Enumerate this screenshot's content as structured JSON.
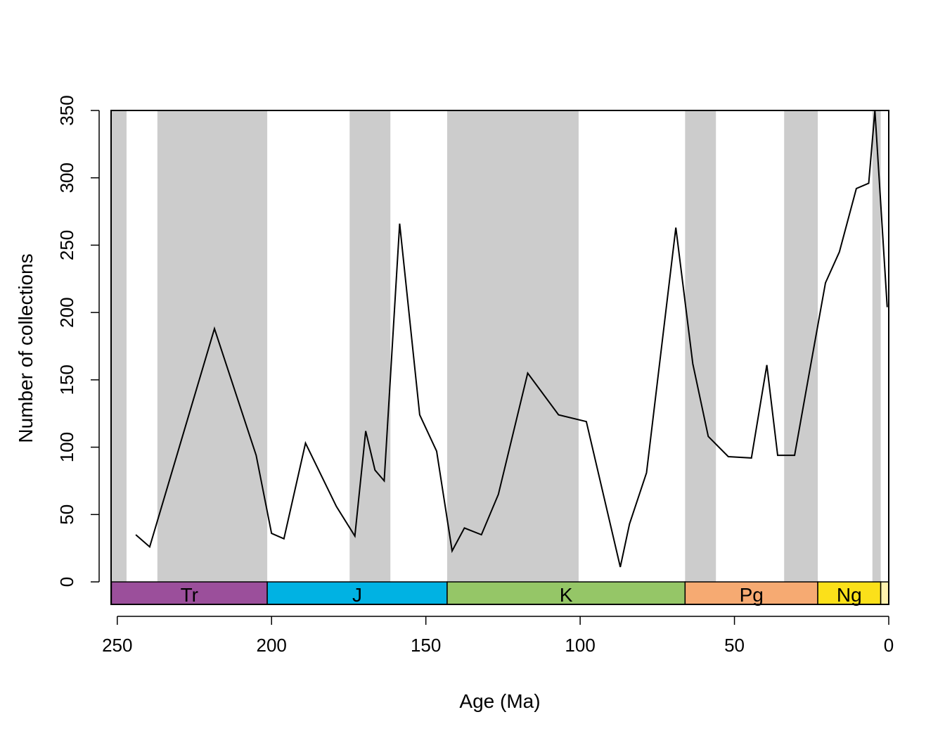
{
  "chart_data": {
    "type": "line",
    "xlabel": "Age (Ma)",
    "ylabel": "Number of collections",
    "xlim": [
      252,
      0
    ],
    "ylim": [
      0,
      350
    ],
    "x_ticks": [
      250,
      200,
      150,
      100,
      50,
      0
    ],
    "x_tick_labels": [
      "250",
      "200",
      "150",
      "100",
      "50",
      "0"
    ],
    "y_ticks": [
      0,
      50,
      100,
      150,
      200,
      250,
      300,
      350
    ],
    "y_tick_labels": [
      "0",
      "50",
      "100",
      "150",
      "200",
      "250",
      "300",
      "350"
    ],
    "grid": false,
    "shaded_intervals": [
      [
        251.9,
        247.0
      ],
      [
        237.0,
        201.4
      ],
      [
        174.7,
        161.5
      ],
      [
        143.1,
        100.5
      ],
      [
        66.0,
        56.0
      ],
      [
        33.9,
        23.0
      ],
      [
        5.3,
        2.6
      ]
    ],
    "shade_color": "#cccccc",
    "periods": [
      {
        "label": "Tr",
        "start": 251.9,
        "end": 201.4,
        "color": "#9b4f9b"
      },
      {
        "label": "J",
        "start": 201.4,
        "end": 143.1,
        "color": "#00b2e3"
      },
      {
        "label": "K",
        "start": 143.1,
        "end": 66.0,
        "color": "#95c667"
      },
      {
        "label": "Pg",
        "start": 66.0,
        "end": 23.0,
        "color": "#f6aa72"
      },
      {
        "label": "Ng",
        "start": 23.0,
        "end": 2.6,
        "color": "#fbe01a"
      },
      {
        "label": "",
        "start": 2.6,
        "end": 0.0,
        "color": "#fff2ae"
      }
    ],
    "series": [
      {
        "color": "#000000",
        "x": [
          244,
          239.5,
          218.5,
          205,
          200,
          196,
          189,
          179,
          173,
          169.5,
          166.5,
          163.5,
          158.5,
          152,
          146.5,
          141.5,
          137.5,
          132,
          126.5,
          117,
          107,
          98,
          87,
          84,
          78.5,
          69,
          63.5,
          58.5,
          52,
          44.5,
          39.5,
          36,
          30.5,
          26,
          20.5,
          16,
          10.5,
          6.5,
          4.5,
          0.5
        ],
        "y": [
          35,
          26,
          188,
          94,
          36,
          32,
          103,
          56,
          34,
          112,
          83,
          75,
          266,
          124,
          97,
          23,
          40,
          35,
          65,
          155,
          124,
          119,
          11,
          43,
          81,
          263,
          162,
          108,
          93,
          92,
          161,
          94,
          94,
          152,
          222,
          245,
          292,
          296,
          350,
          204
        ]
      }
    ]
  }
}
